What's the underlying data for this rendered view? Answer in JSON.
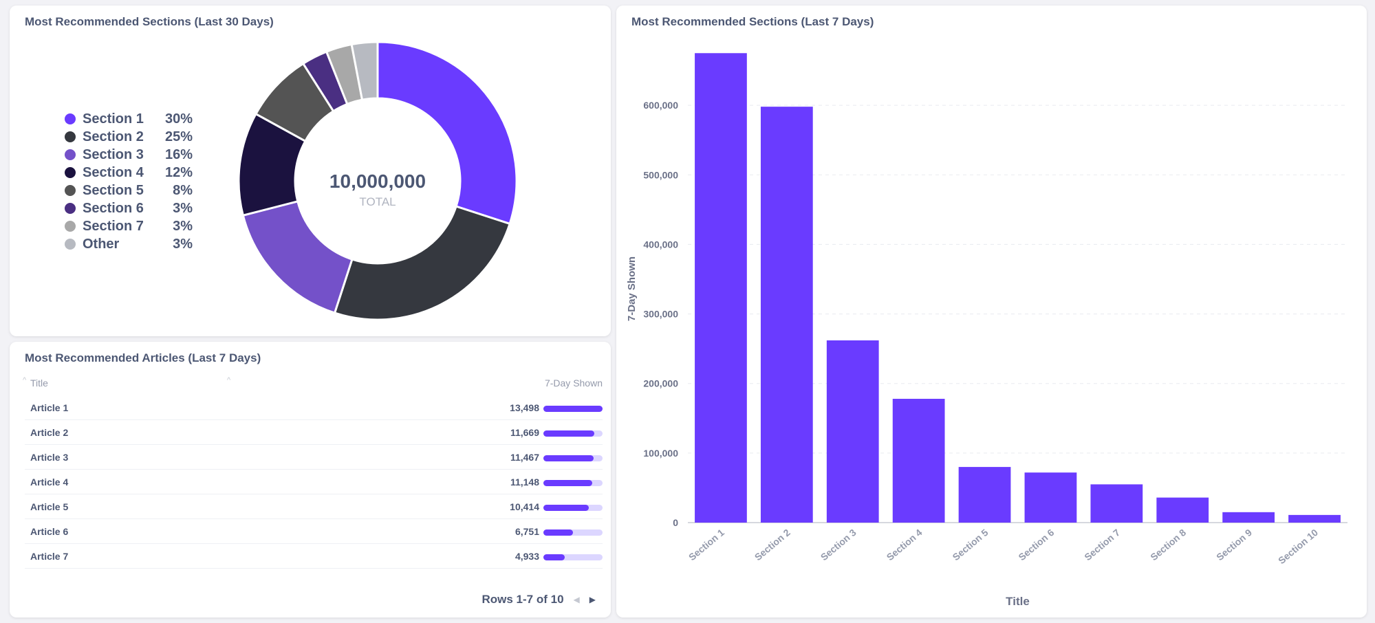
{
  "donut_card": {
    "title": "Most Recommended Sections (Last 30 Days)",
    "total_value": "10,000,000",
    "total_label": "TOTAL"
  },
  "table_card": {
    "title": "Most Recommended Articles (Last 7 Days)",
    "col_title": "Title",
    "col_value": "7-Day Shown",
    "rows": [
      {
        "title": "Article 1",
        "value": "13,498",
        "fraction": 1.0
      },
      {
        "title": "Article 2",
        "value": "11,669",
        "fraction": 0.864
      },
      {
        "title": "Article 3",
        "value": "11,467",
        "fraction": 0.85
      },
      {
        "title": "Article 4",
        "value": "11,148",
        "fraction": 0.826
      },
      {
        "title": "Article 5",
        "value": "10,414",
        "fraction": 0.772
      },
      {
        "title": "Article 6",
        "value": "6,751",
        "fraction": 0.5
      },
      {
        "title": "Article 7",
        "value": "4,933",
        "fraction": 0.365
      }
    ],
    "pagination": "Rows 1-7 of 10"
  },
  "bar_card": {
    "title": "Most Recommended Sections (Last 7 Days)"
  },
  "chart_data": [
    {
      "type": "pie",
      "title": "Most Recommended Sections (Last 30 Days)",
      "categories": [
        "Section 1",
        "Section 2",
        "Section 3",
        "Section 4",
        "Section 5",
        "Section 6",
        "Section 7",
        "Other"
      ],
      "values": [
        30,
        25,
        16,
        12,
        8,
        3,
        3,
        3
      ],
      "labels": [
        "30%",
        "25%",
        "16%",
        "12%",
        "8%",
        "3%",
        "3%",
        "3%"
      ],
      "colors": [
        "#6a3bff",
        "#35383f",
        "#7451c9",
        "#1b123f",
        "#545454",
        "#4a2f82",
        "#a8a8a8",
        "#b7bac1"
      ],
      "legend": "left"
    },
    {
      "type": "bar",
      "title": "Most Recommended Sections (Last 7 Days)",
      "categories": [
        "Section 1",
        "Section 2",
        "Section 3",
        "Section 4",
        "Section 5",
        "Section 6",
        "Section 7",
        "Section 8",
        "Section 9",
        "Section 10"
      ],
      "values": [
        675000,
        598000,
        262000,
        178000,
        80000,
        72000,
        55000,
        36000,
        15000,
        11000
      ],
      "xlabel": "Title",
      "ylabel": "7-Day Shown",
      "ylim": [
        0,
        700000
      ],
      "yticks": [
        0,
        100000,
        200000,
        300000,
        400000,
        500000,
        600000
      ],
      "ytick_labels": [
        "0",
        "100,000",
        "200,000",
        "300,000",
        "400,000",
        "500,000",
        "600,000"
      ],
      "color": "#6a3bff",
      "grid": true
    }
  ]
}
